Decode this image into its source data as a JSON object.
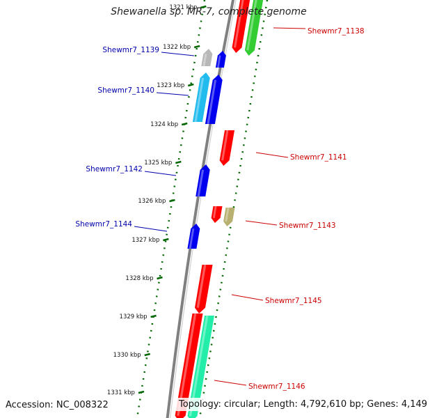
{
  "header": {
    "title": "Shewanella sp. MR-7, complete genome"
  },
  "footer": {
    "accession": "Accession: NC_008322",
    "topology": "Topology: circular; Length: 4,792,610 bp; Genes: 4,149"
  },
  "scale": {
    "ticks": [
      "1321 kbp",
      "1322 kbp",
      "1323 kbp",
      "1324 kbp",
      "1325 kbp",
      "1326 kbp",
      "1327 kbp",
      "1328 kbp",
      "1329 kbp",
      "1330 kbp",
      "1331 kbp"
    ]
  },
  "colors": {
    "forward_label": "#cc0000",
    "reverse_label": "#0000aa",
    "backbone": "#808080",
    "tick": "#006600",
    "feature_red": "#ff0000",
    "feature_green": "#33cc33",
    "feature_blue": "#0000ee",
    "feature_gray": "#b8b8b8",
    "feature_cyan": "#22bbee",
    "feature_khaki": "#b8b070",
    "feature_aqua": "#22eeaa"
  },
  "genes": [
    {
      "label": "Shewmr7_1138",
      "strand": "forward"
    },
    {
      "label": "Shewmr7_1139",
      "strand": "reverse"
    },
    {
      "label": "Shewmr7_1140",
      "strand": "reverse"
    },
    {
      "label": "Shewmr7_1141",
      "strand": "forward"
    },
    {
      "label": "Shewmr7_1142",
      "strand": "reverse"
    },
    {
      "label": "Shewmr7_1143",
      "strand": "forward"
    },
    {
      "label": "Shewmr7_1144",
      "strand": "reverse"
    },
    {
      "label": "Shewmr7_1145",
      "strand": "forward"
    },
    {
      "label": "Shewmr7_1146",
      "strand": "forward"
    }
  ]
}
